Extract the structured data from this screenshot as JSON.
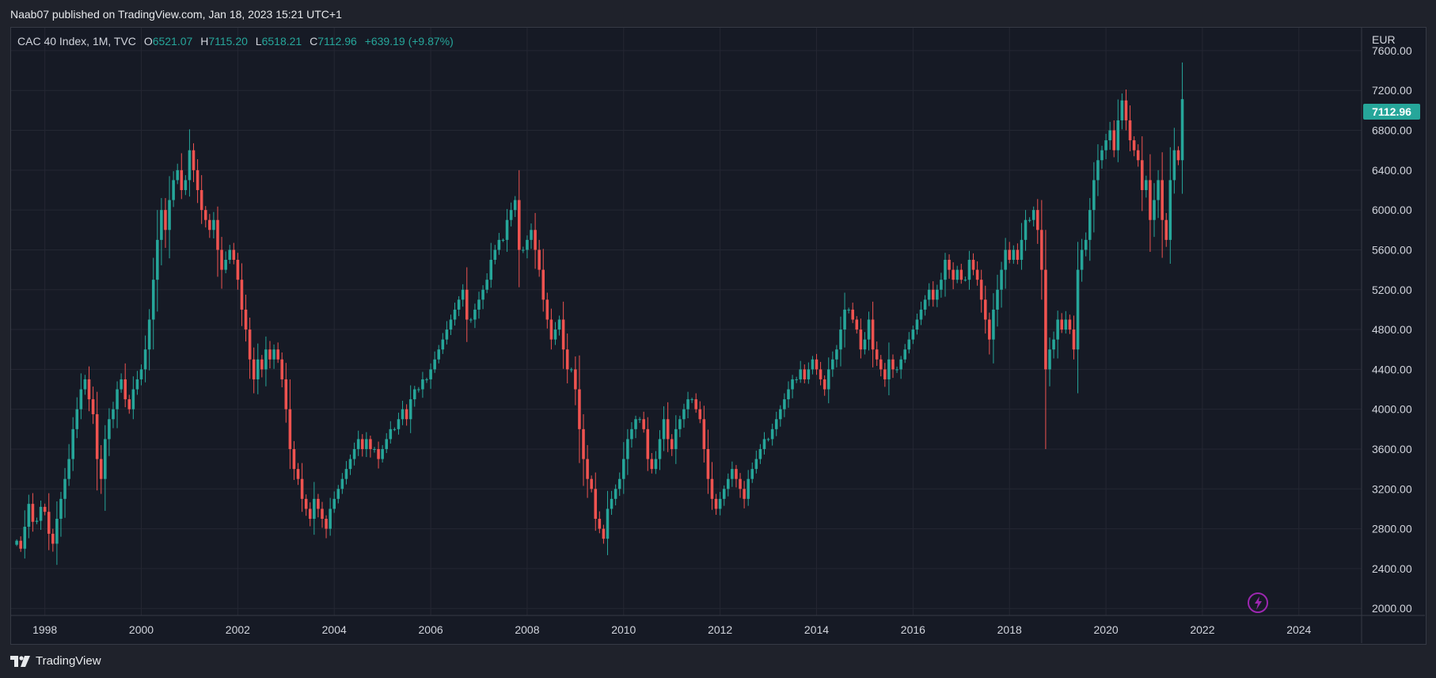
{
  "header": {
    "publish_text": "Naab07 published on TradingView.com, Jan 18, 2023 15:21 UTC+1"
  },
  "legend": {
    "symbol": "CAC 40 Index, 1M, TVC",
    "o_label": "O",
    "o_value": "6521.07",
    "h_label": "H",
    "h_value": "7115.20",
    "l_label": "L",
    "l_value": "6518.21",
    "c_label": "C",
    "c_value": "7112.96",
    "change": "+639.19 (+9.87%)"
  },
  "footer": {
    "brand": "TradingView"
  },
  "colors": {
    "up": "#26a69a",
    "down": "#ef5350",
    "background": "#161a25",
    "grid": "#242733",
    "price_tag": "#26a69a"
  },
  "chart_data": {
    "type": "candlestick",
    "currency": "EUR",
    "last_price_label": "7112.96",
    "x_ticks": [
      "1998",
      "2000",
      "2002",
      "2004",
      "2006",
      "2008",
      "2010",
      "2012",
      "2014",
      "2016",
      "2018",
      "2020",
      "2022",
      "2024"
    ],
    "y_ticks": [
      "7600.00",
      "7200.00",
      "6800.00",
      "6400.00",
      "6000.00",
      "5600.00",
      "5200.00",
      "4800.00",
      "4400.00",
      "4000.00",
      "3600.00",
      "3200.00",
      "2800.00",
      "2400.00",
      "2000.00"
    ],
    "x_range": [
      1997.3,
      2025.3
    ],
    "y_range": [
      1930,
      7830
    ],
    "grid": true,
    "closes_start": "1997-06",
    "closes": [
      2680,
      2600,
      2820,
      3050,
      2870,
      2880,
      3020,
      2970,
      2750,
      2650,
      2900,
      3100,
      3300,
      3500,
      3800,
      4000,
      4200,
      4300,
      4100,
      3950,
      3500,
      3300,
      3700,
      3900,
      4000,
      4200,
      4300,
      4100,
      4000,
      4200,
      4300,
      4400,
      4600,
      4900,
      5300,
      5700,
      6000,
      5800,
      6100,
      6300,
      6400,
      6200,
      6300,
      6600,
      6400,
      6200,
      6000,
      5900,
      5800,
      5900,
      5600,
      5400,
      5500,
      5600,
      5500,
      5300,
      5000,
      4800,
      4500,
      4300,
      4500,
      4400,
      4600,
      4500,
      4600,
      4500,
      4300,
      4000,
      3600,
      3400,
      3300,
      3100,
      3000,
      2900,
      3100,
      3000,
      2900,
      2800,
      3000,
      3100,
      3200,
      3300,
      3400,
      3500,
      3600,
      3700,
      3600,
      3700,
      3600,
      3600,
      3500,
      3600,
      3700,
      3800,
      3800,
      3900,
      4000,
      3900,
      4100,
      4200,
      4200,
      4300,
      4300,
      4400,
      4500,
      4600,
      4700,
      4800,
      4900,
      5000,
      5100,
      5200,
      4900,
      4900,
      5000,
      5100,
      5200,
      5300,
      5500,
      5600,
      5700,
      5700,
      5900,
      6000,
      6100,
      5600,
      5600,
      5700,
      5800,
      5600,
      5400,
      5100,
      4900,
      4700,
      4800,
      4900,
      4600,
      4400,
      4400,
      4200,
      3800,
      3500,
      3300,
      3200,
      2900,
      2800,
      2700,
      3000,
      3100,
      3200,
      3300,
      3500,
      3700,
      3800,
      3900,
      3900,
      3800,
      3500,
      3400,
      3500,
      3700,
      3900,
      3700,
      3600,
      3800,
      3900,
      4000,
      4100,
      4100,
      4000,
      3900,
      3600,
      3300,
      3100,
      3000,
      3100,
      3200,
      3300,
      3400,
      3300,
      3200,
      3100,
      3300,
      3400,
      3500,
      3600,
      3700,
      3700,
      3800,
      3900,
      4000,
      4100,
      4200,
      4300,
      4300,
      4400,
      4300,
      4400,
      4500,
      4400,
      4300,
      4200,
      4400,
      4500,
      4600,
      4800,
      5000,
      5000,
      4900,
      4800,
      4600,
      4700,
      4900,
      4600,
      4500,
      4400,
      4300,
      4500,
      4400,
      4400,
      4500,
      4600,
      4700,
      4800,
      4900,
      5000,
      5100,
      5200,
      5100,
      5200,
      5300,
      5500,
      5400,
      5300,
      5400,
      5300,
      5300,
      5500,
      5400,
      5300,
      5100,
      4900,
      4700,
      5000,
      5200,
      5400,
      5600,
      5500,
      5600,
      5500,
      5700,
      5900,
      5900,
      6000,
      5800,
      5400,
      4400,
      4600,
      4700,
      4900,
      4800,
      4900,
      4800,
      4600,
      5400,
      5600,
      5700,
      6000,
      6300,
      6500,
      6600,
      6700,
      6800,
      6600,
      6900,
      7100,
      6900,
      6700,
      6600,
      6500,
      6200,
      6300,
      5900,
      6100,
      6300,
      5900,
      5700,
      6300,
      6600,
      6500,
      7113
    ]
  }
}
